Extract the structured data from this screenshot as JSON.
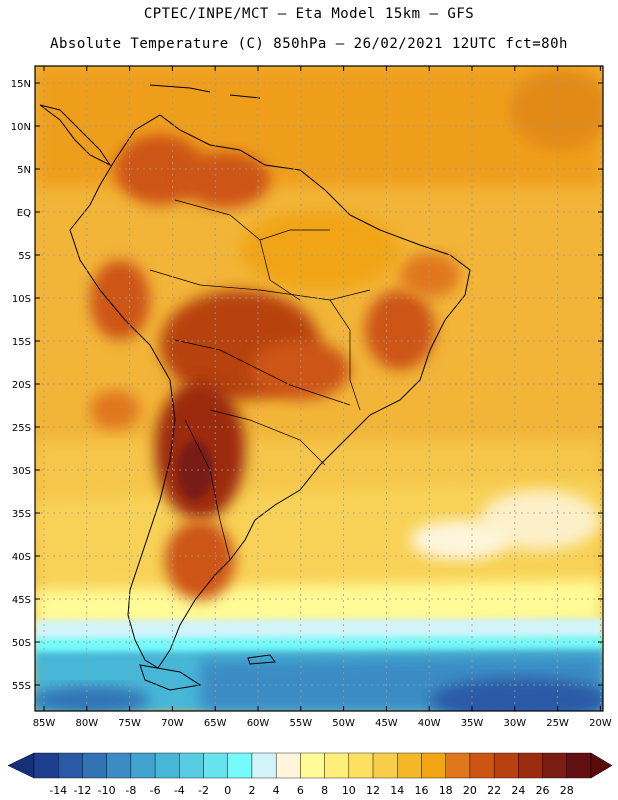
{
  "title_line1": "CPTEC/INPE/MCT –  Eta Model 15km – GFS",
  "title_line2": "Absolute Temperature (C) 850hPa – 26/02/2021 12UTC fct=80h",
  "lat_labels": [
    "15N",
    "10N",
    "5N",
    "EQ",
    "5S",
    "10S",
    "15S",
    "20S",
    "25S",
    "30S",
    "35S",
    "40S",
    "45S",
    "50S",
    "55S"
  ],
  "lon_labels": [
    "85W",
    "80W",
    "75W",
    "70W",
    "65W",
    "60W",
    "55W",
    "50W",
    "45W",
    "40W",
    "35W",
    "30W",
    "25W",
    "20W"
  ],
  "colorbar": {
    "ticks": [
      "-14",
      "-12",
      "-10",
      "-8",
      "-6",
      "-4",
      "-2",
      "0",
      "2",
      "4",
      "6",
      "8",
      "10",
      "12",
      "14",
      "16",
      "18",
      "20",
      "22",
      "24",
      "26",
      "28"
    ],
    "colors": [
      "#1e3f8e",
      "#2a5aa6",
      "#3273b4",
      "#3b8cc4",
      "#42a3cf",
      "#47b7d8",
      "#56cde3",
      "#66e3ee",
      "#76fbfb",
      "#d2f4f9",
      "#fdf6dc",
      "#fffb96",
      "#ffee78",
      "#fde060",
      "#f8cd48",
      "#f4b728",
      "#f1a512",
      "#e0771a",
      "#cd5514",
      "#b7420f",
      "#9c2c10",
      "#7a1e14",
      "#611013"
    ],
    "under_color": "#15307a",
    "over_color": "#5a0c0c"
  },
  "colors": {
    "ocean_base": "#f2b538",
    "land_border": "#000000",
    "grid": "#9a9a9a"
  }
}
